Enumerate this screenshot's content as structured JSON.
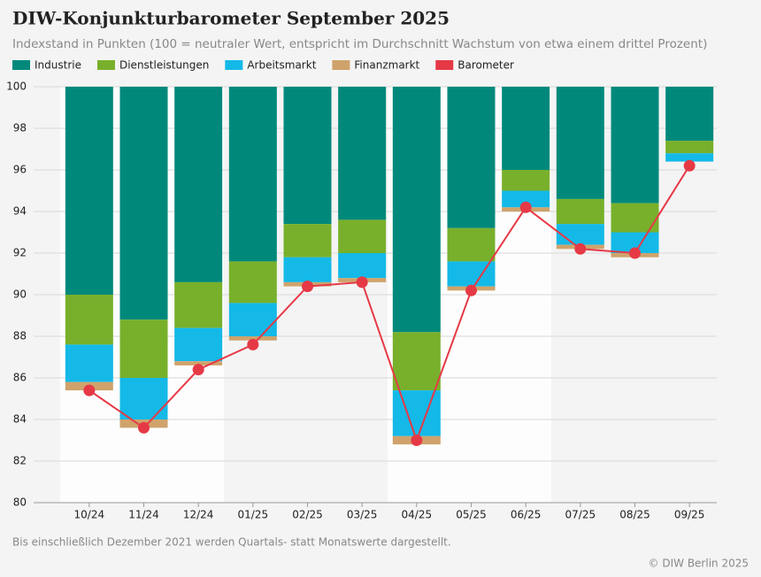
{
  "chart_data": {
    "type": "stacked-bar-line",
    "title": "DIW-Konjunkturbarometer September 2025",
    "subtitle": "Indexstand in Punkten (100 = neutraler Wert, entspricht im Durchschnitt Wachstum von etwa einem drittel Prozent)",
    "footnote": "Bis einschließlich Dezember 2021 werden Quartals- statt Monatswerte dargestellt.",
    "credit": "© DIW Berlin 2025",
    "categories": [
      "10/24",
      "11/24",
      "12/24",
      "01/25",
      "02/25",
      "03/25",
      "04/25",
      "05/25",
      "06/25",
      "07/25",
      "08/25",
      "09/25"
    ],
    "series": [
      {
        "name": "Industrie",
        "color": "#00897b",
        "values": [
          -10.0,
          -11.2,
          -9.4,
          -8.4,
          -6.6,
          -6.4,
          -11.8,
          -6.8,
          -4.0,
          -5.4,
          -5.6,
          -2.6
        ]
      },
      {
        "name": "Dienstleistungen",
        "color": "#78b02b",
        "values": [
          -2.4,
          -2.8,
          -2.2,
          -2.0,
          -1.6,
          -1.6,
          -2.8,
          -1.6,
          -1.0,
          -1.2,
          -1.4,
          -0.6
        ]
      },
      {
        "name": "Arbeitsmarkt",
        "color": "#14b9e8",
        "values": [
          -1.8,
          -2.0,
          -1.6,
          -1.6,
          -1.2,
          -1.2,
          -2.2,
          -1.2,
          -0.8,
          -1.0,
          -1.0,
          -0.4
        ]
      },
      {
        "name": "Finanzmarkt",
        "color": "#cfa36b",
        "values": [
          -0.4,
          -0.4,
          -0.2,
          -0.2,
          -0.2,
          -0.2,
          -0.4,
          -0.2,
          -0.2,
          -0.2,
          -0.2,
          0
        ]
      },
      {
        "name": "Barometer",
        "color": "#e63946",
        "values": [
          85.4,
          83.6,
          86.4,
          87.6,
          90.4,
          90.6,
          83.0,
          90.2,
          94.2,
          92.2,
          92.0,
          96.2
        ]
      }
    ],
    "ylim": [
      80,
      100
    ],
    "yticks": [
      80,
      82,
      84,
      86,
      88,
      90,
      92,
      94,
      96,
      98,
      100
    ],
    "grid": true
  }
}
